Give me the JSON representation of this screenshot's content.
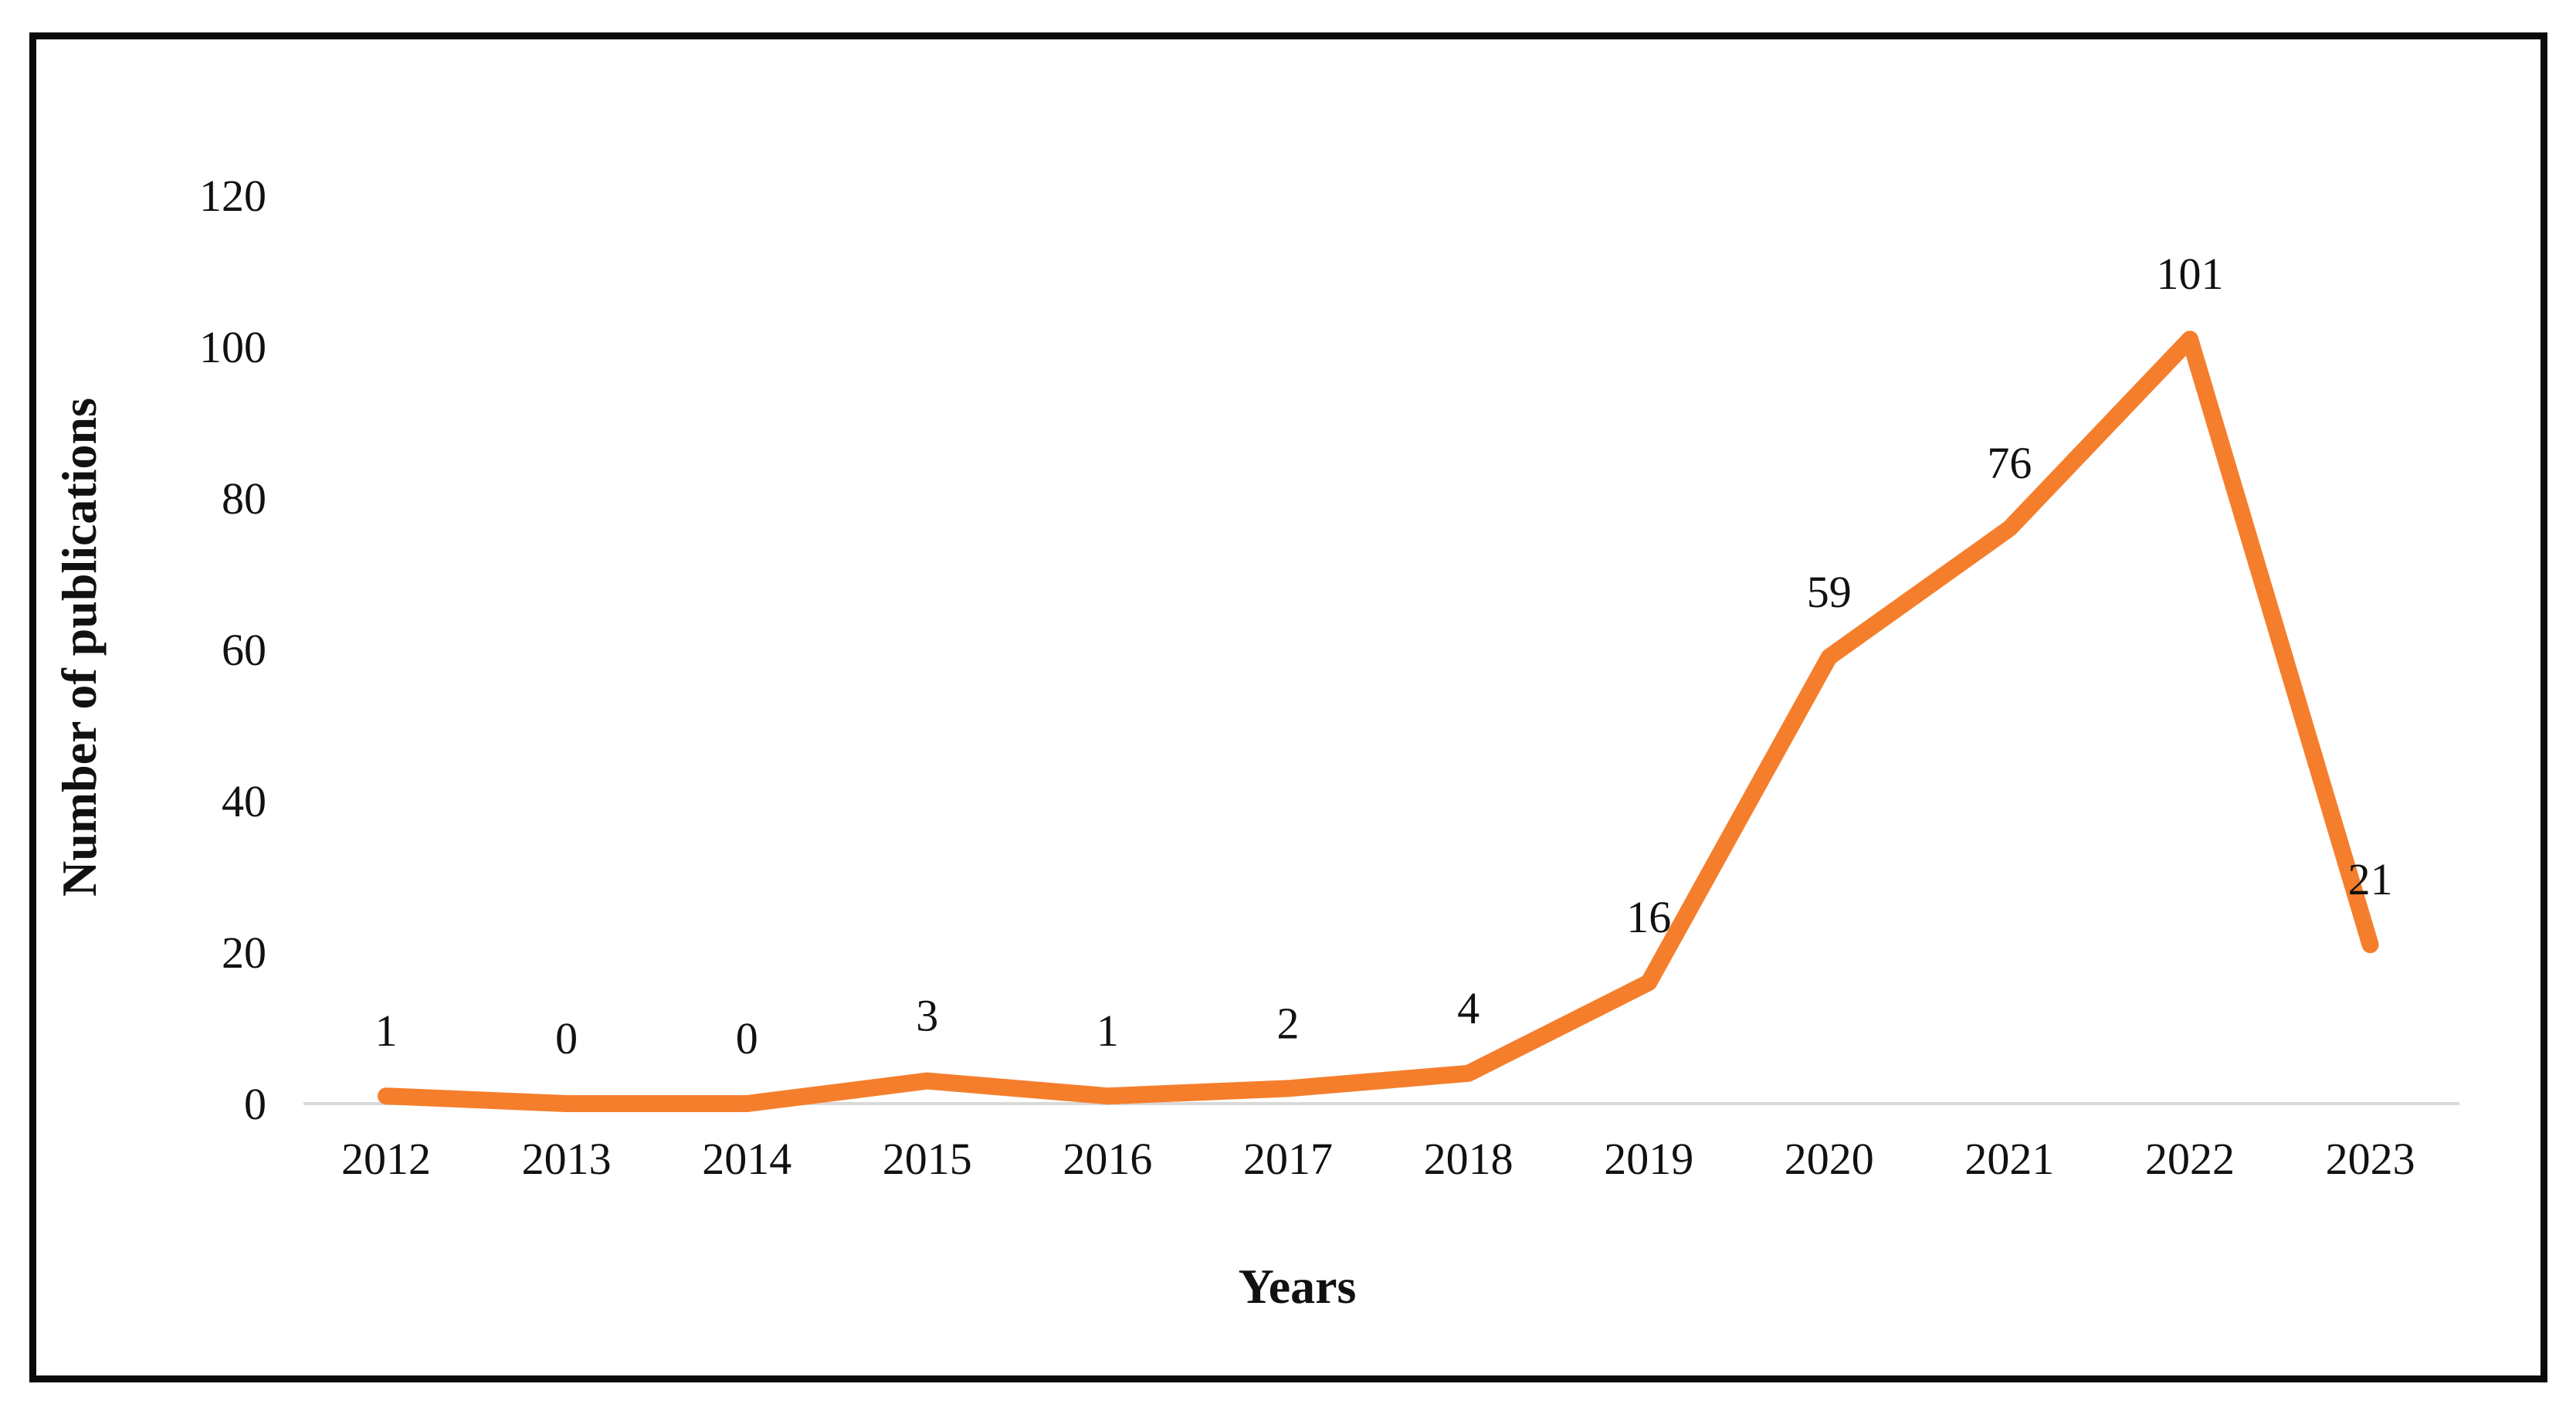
{
  "chart_data": {
    "type": "line",
    "categories": [
      "2012",
      "2013",
      "2014",
      "2015",
      "2016",
      "2017",
      "2018",
      "2019",
      "2020",
      "2021",
      "2022",
      "2023"
    ],
    "values": [
      1,
      0,
      0,
      3,
      1,
      2,
      4,
      16,
      59,
      76,
      101,
      21
    ],
    "data_labels": [
      "1",
      "0",
      "0",
      "3",
      "1",
      "2",
      "4",
      "16",
      "59",
      "76",
      "101",
      "21"
    ],
    "title": "",
    "xlabel": "Years",
    "ylabel": "Number of publications",
    "ylim": [
      0,
      120
    ],
    "yticks": [
      0,
      20,
      40,
      60,
      80,
      100,
      120
    ],
    "grid": false,
    "legend": "none",
    "line_color": "#F57E2C",
    "axis_line_color": "#D9D9D9",
    "text_color": "#111111",
    "frame_color": "#0A0A0A"
  }
}
